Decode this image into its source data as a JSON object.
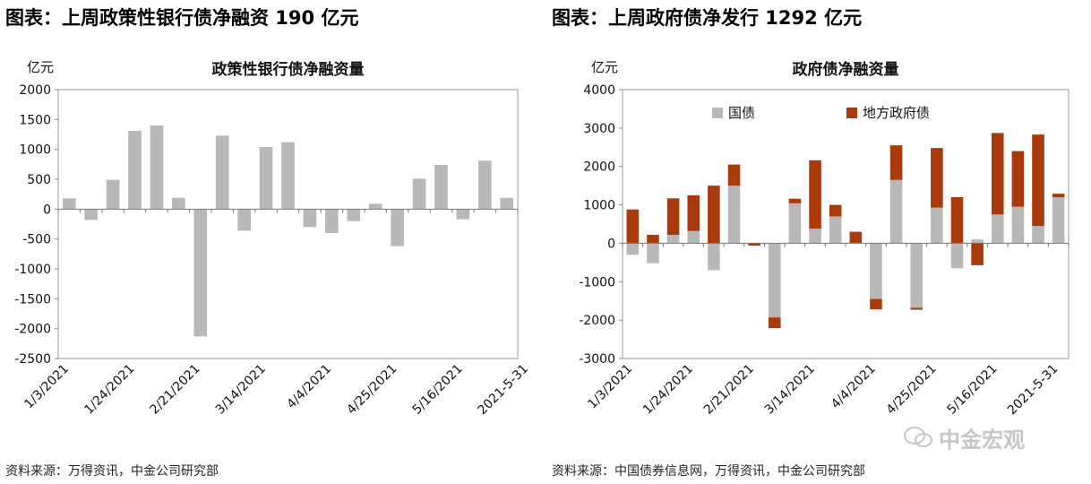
{
  "left": {
    "heading": "图表：上周政策性银行债净融资 190 亿元",
    "source": "资料来源：万得资讯，中金公司研究部"
  },
  "right": {
    "heading": "图表：上周政府债净发行 1292 亿元",
    "source": "资料来源：中国债券信息网，万得资讯，中金公司研究部"
  },
  "watermark": "中金宏观",
  "colors": {
    "gray": "#b8b8b8",
    "orange": "#a83a0c",
    "axis": "#888888"
  },
  "chart_data": [
    {
      "type": "bar",
      "title": "政策性银行债净融资量",
      "unit_label": "亿元",
      "ylim": [
        -2500,
        2000
      ],
      "yticks": [
        2000,
        1500,
        1000,
        500,
        0,
        -500,
        -1000,
        -1500,
        -2000,
        -2500
      ],
      "x_tick_labels": [
        "1/3/2021",
        "1/24/2021",
        "2/21/2021",
        "3/14/2021",
        "4/4/2021",
        "4/25/2021",
        "5/16/2021",
        "2021-5-31"
      ],
      "x_tick_positions": [
        0,
        3,
        6,
        9,
        12,
        15,
        18,
        21
      ],
      "series": [
        {
          "values": [
            180,
            -180,
            490,
            1310,
            1400,
            190,
            -2130,
            1230,
            -360,
            1040,
            1120,
            -300,
            -400,
            -200,
            90,
            -620,
            510,
            740,
            -170,
            810,
            190
          ]
        }
      ]
    },
    {
      "type": "bar",
      "stacked": true,
      "title": "政府债净融资量",
      "unit_label": "亿元",
      "ylim": [
        -3000,
        4000
      ],
      "yticks": [
        4000,
        3000,
        2000,
        1000,
        0,
        -1000,
        -2000,
        -3000
      ],
      "legend": "top-left",
      "x_tick_labels": [
        "1/3/2021",
        "1/24/2021",
        "2/21/2021",
        "3/14/2021",
        "4/4/2021",
        "4/25/2021",
        "5/16/2021",
        "2021-5-31"
      ],
      "x_tick_positions": [
        0,
        3,
        6,
        9,
        12,
        15,
        18,
        21
      ],
      "series": [
        {
          "name": "国债",
          "values": [
            -300,
            -520,
            220,
            320,
            -700,
            1500,
            0,
            -1930,
            1040,
            380,
            700,
            0,
            -1450,
            1650,
            -1680,
            930,
            -650,
            100,
            750,
            950,
            450,
            1200
          ]
        },
        {
          "name": "地方政府债",
          "values": [
            880,
            220,
            950,
            930,
            1500,
            550,
            -60,
            -280,
            120,
            1780,
            300,
            300,
            -270,
            900,
            -50,
            1550,
            1200,
            -570,
            2120,
            1450,
            2380,
            90
          ]
        }
      ]
    }
  ]
}
